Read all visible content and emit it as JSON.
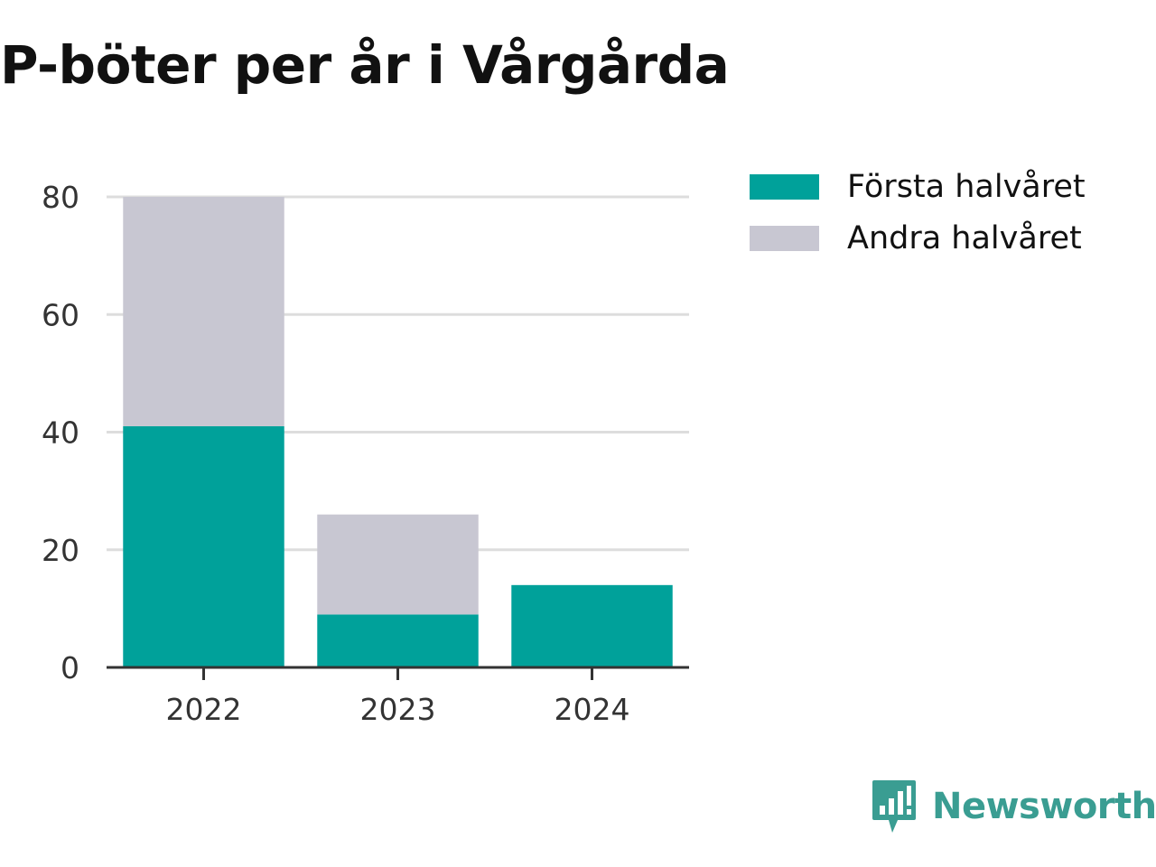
{
  "chart_data": {
    "type": "bar",
    "stacked": true,
    "title": "P-böter per år i Vårgårda",
    "categories": [
      "2022",
      "2023",
      "2024"
    ],
    "series": [
      {
        "name": "Första halvåret",
        "color": "#00a19a",
        "values": [
          41,
          9,
          14
        ]
      },
      {
        "name": "Andra halvåret",
        "color": "#c8c7d2",
        "values": [
          39,
          17,
          0
        ]
      }
    ],
    "ylim": [
      0,
      80
    ],
    "yticks": [
      0,
      20,
      40,
      60,
      80
    ],
    "grid": true,
    "legend": "top-right"
  },
  "brand": {
    "name": "Newsworthy",
    "icon": "newsworthy-logo-icon",
    "color": "#3a9d92"
  }
}
